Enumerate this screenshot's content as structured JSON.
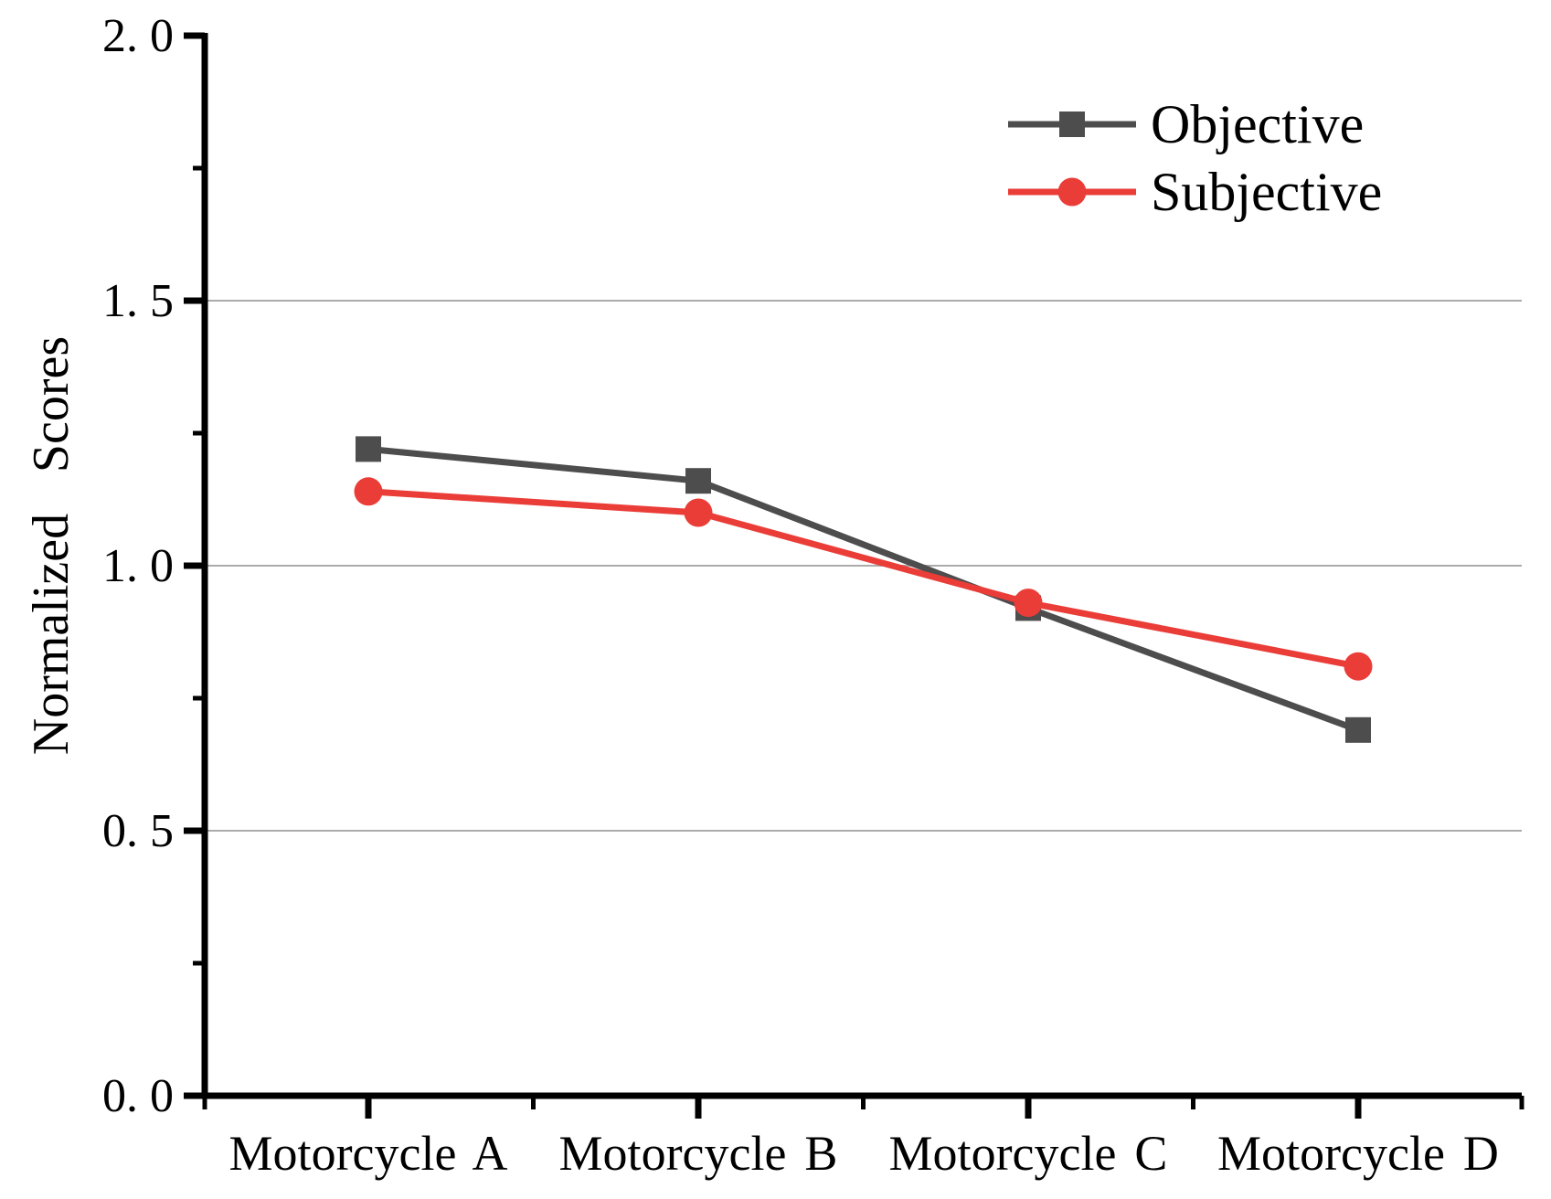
{
  "chart_data": {
    "type": "line",
    "title": "",
    "xlabel": "",
    "ylabel": "Normalized Scores",
    "categories": [
      "Motorcycle A",
      "Motorcycle B",
      "Motorcycle C",
      "Motorcycle D"
    ],
    "series": [
      {
        "name": "Objective",
        "color": "#4d4d4d",
        "marker": "square",
        "values": [
          1.22,
          1.16,
          0.92,
          0.69
        ]
      },
      {
        "name": "Subjective",
        "color": "#ea3d38",
        "marker": "circle",
        "values": [
          1.14,
          1.1,
          0.93,
          0.81
        ]
      }
    ],
    "ylim": [
      0.0,
      2.0
    ],
    "ytick_values": [
      0.0,
      0.5,
      1.0,
      1.5,
      2.0
    ],
    "ytick_labels": [
      "0. 0",
      "0. 5",
      "1. 0",
      "1. 5",
      "2. 0"
    ],
    "y_minor_ticks": [
      0.25,
      0.75,
      1.25,
      1.75
    ],
    "grid_values": [
      0.5,
      1.0,
      1.5
    ],
    "grid": "horizontal-light-gray",
    "legend_position": "top-right",
    "axis_color": "#000000",
    "grid_color": "#ababab"
  }
}
